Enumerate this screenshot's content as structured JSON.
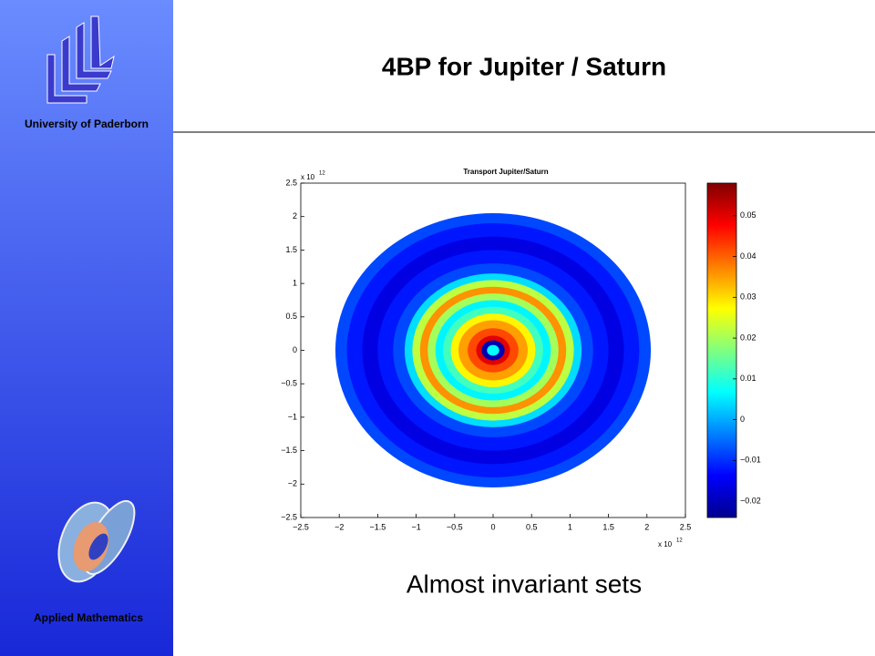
{
  "slide": {
    "title": "4BP for Jupiter / Saturn",
    "university": "University of Paderborn",
    "department": "Applied Mathematics",
    "caption": "Almost invariant sets"
  },
  "chart_data": {
    "type": "heatmap",
    "title": "Transport Jupiter/Saturn",
    "x_multiplier": "x 10",
    "x_power": "12",
    "y_multiplier": "x 10",
    "y_power": "12",
    "x": [
      2.05,
      1.9,
      1.7,
      1.5,
      1.3,
      1.15,
      1.05,
      0.95,
      0.85,
      0.75,
      0.65,
      0.55,
      0.45,
      0.33,
      0.22,
      0.15,
      0.08
    ],
    "values": [
      -0.008,
      -0.012,
      -0.016,
      -0.012,
      -0.008,
      0.004,
      0.022,
      0.036,
      0.02,
      0.006,
      0.012,
      0.028,
      0.035,
      0.042,
      0.05,
      -0.02,
      0.007
    ],
    "xlim": [
      -2.5,
      2.5
    ],
    "ylim": [
      -2.5,
      2.5
    ],
    "xticks": [
      {
        "value": -2.5,
        "label": "−2.5"
      },
      {
        "value": -2,
        "label": "−2"
      },
      {
        "value": -1.5,
        "label": "−1.5"
      },
      {
        "value": -1,
        "label": "−1"
      },
      {
        "value": -0.5,
        "label": "−0.5"
      },
      0,
      0.5,
      1,
      1.5,
      2,
      2.5
    ],
    "yticks": [
      {
        "value": -2.5,
        "label": "−2.5"
      },
      {
        "value": -2,
        "label": "−2"
      },
      {
        "value": -1.5,
        "label": "−1.5"
      },
      {
        "value": -1,
        "label": "−1"
      },
      {
        "value": -0.5,
        "label": "−0.5"
      },
      0,
      0.5,
      1,
      1.5,
      2,
      2.5
    ],
    "clim": [
      -0.024,
      0.058
    ],
    "cticks": [
      {
        "value": -0.02,
        "label": "−0.02"
      },
      {
        "value": -0.01,
        "label": "−0.01"
      },
      0,
      0.01,
      0.02,
      0.03,
      0.04,
      0.05
    ],
    "colormap": "jet"
  }
}
